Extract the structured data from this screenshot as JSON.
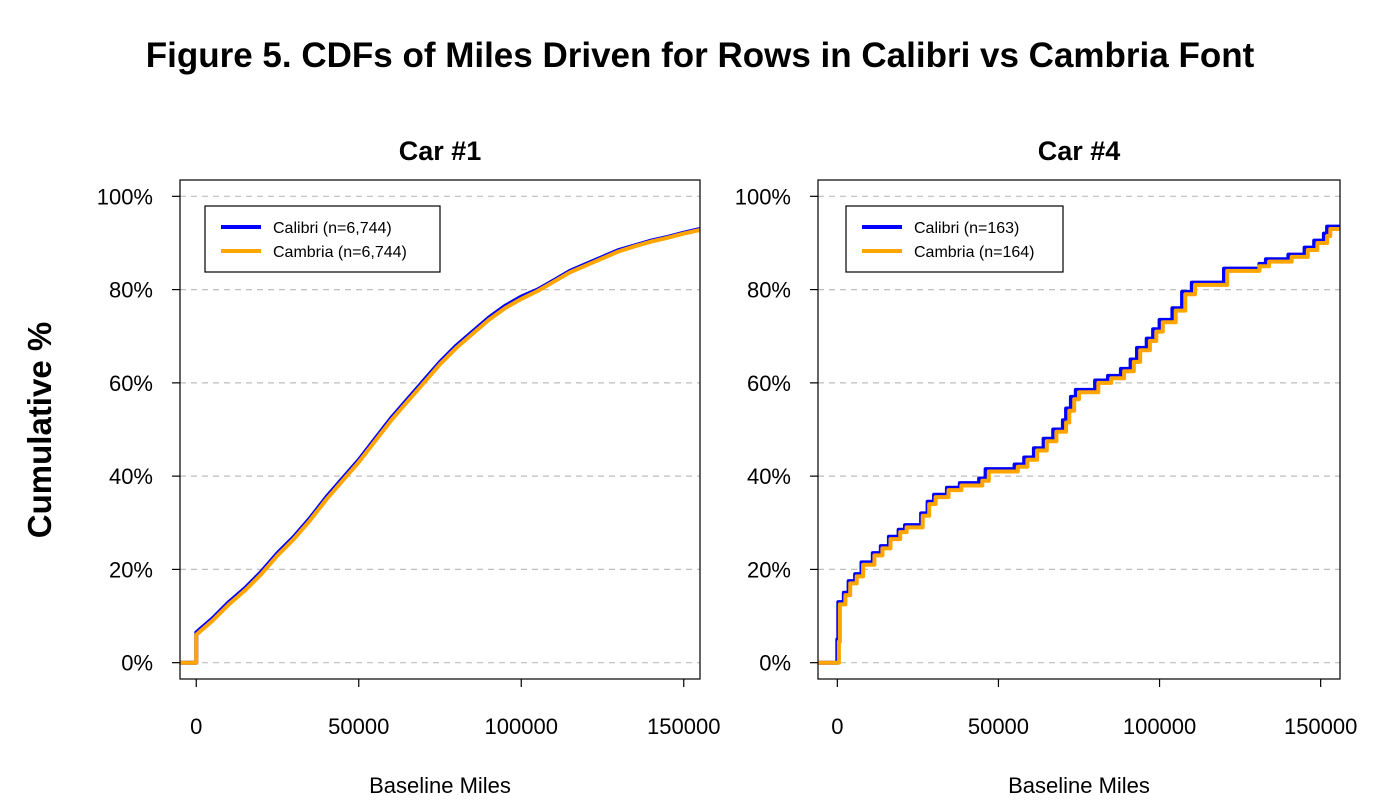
{
  "figure_title": "Figure 5. CDFs of Miles Driven for Rows in Calibri vs Cambria Font",
  "y_label": "Cumulative %",
  "colors": {
    "calibri": "#0000ff",
    "cambria": "#ffa500",
    "grid": "#bebebe",
    "axis": "#000000"
  },
  "chart_data": [
    {
      "type": "line",
      "title": "Car #1",
      "xlabel": "Baseline Miles",
      "ylabel": "Cumulative %",
      "xlim": [
        -5000,
        155000
      ],
      "ylim": [
        -0.035,
        1.035
      ],
      "x_ticks": [
        0,
        50000,
        100000,
        150000
      ],
      "y_ticks": [
        0,
        0.2,
        0.4,
        0.6,
        0.8,
        1.0
      ],
      "y_tick_labels": [
        "0%",
        "20%",
        "40%",
        "60%",
        "80%",
        "100%"
      ],
      "grid": "dashed horizontal at y ticks",
      "legend_position": "top-left",
      "series": [
        {
          "name": "Calibri (n=6,744)",
          "color": "#0000ff",
          "points": [
            [
              -5000,
              0
            ],
            [
              0,
              0
            ],
            [
              0,
              0.065
            ],
            [
              5000,
              0.095
            ],
            [
              10000,
              0.13
            ],
            [
              15000,
              0.16
            ],
            [
              20000,
              0.195
            ],
            [
              25000,
              0.235
            ],
            [
              30000,
              0.27
            ],
            [
              35000,
              0.31
            ],
            [
              40000,
              0.355
            ],
            [
              45000,
              0.395
            ],
            [
              50000,
              0.435
            ],
            [
              55000,
              0.48
            ],
            [
              60000,
              0.525
            ],
            [
              65000,
              0.565
            ],
            [
              70000,
              0.605
            ],
            [
              75000,
              0.645
            ],
            [
              80000,
              0.68
            ],
            [
              85000,
              0.71
            ],
            [
              90000,
              0.74
            ],
            [
              95000,
              0.765
            ],
            [
              100000,
              0.785
            ],
            [
              105000,
              0.8
            ],
            [
              110000,
              0.82
            ],
            [
              115000,
              0.84
            ],
            [
              120000,
              0.855
            ],
            [
              125000,
              0.87
            ],
            [
              130000,
              0.885
            ],
            [
              135000,
              0.895
            ],
            [
              140000,
              0.905
            ],
            [
              145000,
              0.913
            ],
            [
              150000,
              0.922
            ],
            [
              155000,
              0.93
            ]
          ]
        },
        {
          "name": "Cambria (n=6,744)",
          "color": "#ffa500",
          "points": [
            [
              -5000,
              0
            ],
            [
              0,
              0
            ],
            [
              0,
              0.06
            ],
            [
              5000,
              0.09
            ],
            [
              10000,
              0.125
            ],
            [
              15000,
              0.155
            ],
            [
              20000,
              0.19
            ],
            [
              25000,
              0.23
            ],
            [
              30000,
              0.265
            ],
            [
              35000,
              0.305
            ],
            [
              40000,
              0.35
            ],
            [
              45000,
              0.39
            ],
            [
              50000,
              0.43
            ],
            [
              55000,
              0.475
            ],
            [
              60000,
              0.52
            ],
            [
              65000,
              0.56
            ],
            [
              70000,
              0.6
            ],
            [
              75000,
              0.64
            ],
            [
              80000,
              0.675
            ],
            [
              85000,
              0.705
            ],
            [
              90000,
              0.735
            ],
            [
              95000,
              0.76
            ],
            [
              100000,
              0.78
            ],
            [
              105000,
              0.797
            ],
            [
              110000,
              0.817
            ],
            [
              115000,
              0.837
            ],
            [
              120000,
              0.852
            ],
            [
              125000,
              0.867
            ],
            [
              130000,
              0.882
            ],
            [
              135000,
              0.893
            ],
            [
              140000,
              0.903
            ],
            [
              145000,
              0.911
            ],
            [
              150000,
              0.92
            ],
            [
              155000,
              0.928
            ]
          ]
        }
      ]
    },
    {
      "type": "line",
      "title": "Car #4",
      "xlabel": "Baseline Miles",
      "ylabel": "Cumulative %",
      "xlim": [
        -6000,
        156000
      ],
      "ylim": [
        -0.035,
        1.035
      ],
      "x_ticks": [
        0,
        50000,
        100000,
        150000
      ],
      "y_ticks": [
        0,
        0.2,
        0.4,
        0.6,
        0.8,
        1.0
      ],
      "y_tick_labels": [
        "0%",
        "20%",
        "40%",
        "60%",
        "80%",
        "100%"
      ],
      "grid": "dashed horizontal at y ticks",
      "legend_position": "top-left",
      "series": [
        {
          "name": "Calibri (n=163)",
          "color": "#0000ff",
          "step": true,
          "points": [
            [
              -6000,
              0
            ],
            [
              0,
              0
            ],
            [
              0,
              0.05
            ],
            [
              300,
              0.13
            ],
            [
              2000,
              0.15
            ],
            [
              3500,
              0.175
            ],
            [
              5500,
              0.19
            ],
            [
              7500,
              0.215
            ],
            [
              11000,
              0.235
            ],
            [
              13500,
              0.25
            ],
            [
              16000,
              0.27
            ],
            [
              19000,
              0.285
            ],
            [
              21000,
              0.295
            ],
            [
              26000,
              0.32
            ],
            [
              28000,
              0.345
            ],
            [
              30000,
              0.36
            ],
            [
              34000,
              0.375
            ],
            [
              38000,
              0.385
            ],
            [
              44000,
              0.395
            ],
            [
              46000,
              0.415
            ],
            [
              55000,
              0.425
            ],
            [
              58000,
              0.44
            ],
            [
              61000,
              0.46
            ],
            [
              64000,
              0.48
            ],
            [
              67000,
              0.5
            ],
            [
              70000,
              0.52
            ],
            [
              71000,
              0.545
            ],
            [
              72500,
              0.57
            ],
            [
              74000,
              0.585
            ],
            [
              80000,
              0.605
            ],
            [
              84000,
              0.615
            ],
            [
              88000,
              0.63
            ],
            [
              91000,
              0.65
            ],
            [
              93000,
              0.675
            ],
            [
              96000,
              0.695
            ],
            [
              98000,
              0.715
            ],
            [
              100000,
              0.735
            ],
            [
              104000,
              0.76
            ],
            [
              107000,
              0.795
            ],
            [
              110000,
              0.815
            ],
            [
              120000,
              0.845
            ],
            [
              131000,
              0.855
            ],
            [
              133000,
              0.865
            ],
            [
              140000,
              0.875
            ],
            [
              145000,
              0.89
            ],
            [
              148000,
              0.905
            ],
            [
              151000,
              0.92
            ],
            [
              152000,
              0.935
            ],
            [
              156000,
              0.935
            ]
          ]
        },
        {
          "name": "Cambria (n=164)",
          "color": "#ffa500",
          "step": true,
          "points": [
            [
              -6000,
              0
            ],
            [
              0,
              0
            ],
            [
              500,
              0.045
            ],
            [
              800,
              0.125
            ],
            [
              2500,
              0.145
            ],
            [
              4000,
              0.17
            ],
            [
              6000,
              0.185
            ],
            [
              8000,
              0.21
            ],
            [
              11500,
              0.23
            ],
            [
              14000,
              0.245
            ],
            [
              16500,
              0.265
            ],
            [
              19500,
              0.28
            ],
            [
              21500,
              0.29
            ],
            [
              26500,
              0.315
            ],
            [
              28500,
              0.34
            ],
            [
              30500,
              0.355
            ],
            [
              34500,
              0.37
            ],
            [
              38500,
              0.38
            ],
            [
              45000,
              0.39
            ],
            [
              47000,
              0.41
            ],
            [
              56000,
              0.42
            ],
            [
              59000,
              0.435
            ],
            [
              62000,
              0.455
            ],
            [
              65000,
              0.475
            ],
            [
              68000,
              0.495
            ],
            [
              71000,
              0.515
            ],
            [
              72000,
              0.54
            ],
            [
              73500,
              0.565
            ],
            [
              75000,
              0.58
            ],
            [
              81000,
              0.6
            ],
            [
              85000,
              0.61
            ],
            [
              89000,
              0.625
            ],
            [
              92000,
              0.645
            ],
            [
              94000,
              0.67
            ],
            [
              97000,
              0.69
            ],
            [
              99000,
              0.71
            ],
            [
              101000,
              0.73
            ],
            [
              105000,
              0.755
            ],
            [
              108000,
              0.79
            ],
            [
              111000,
              0.81
            ],
            [
              121000,
              0.84
            ],
            [
              131000,
              0.85
            ],
            [
              134000,
              0.86
            ],
            [
              141000,
              0.87
            ],
            [
              146000,
              0.885
            ],
            [
              149000,
              0.9
            ],
            [
              152000,
              0.915
            ],
            [
              153000,
              0.93
            ],
            [
              156000,
              0.93
            ]
          ]
        }
      ]
    }
  ]
}
